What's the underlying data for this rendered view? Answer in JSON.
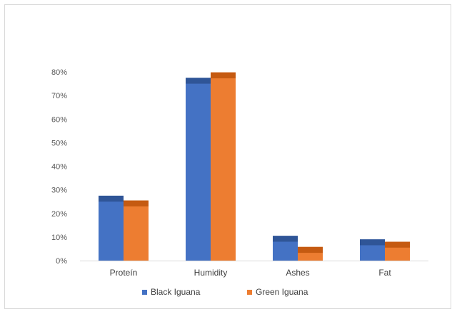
{
  "chart_data": {
    "type": "bar",
    "categories": [
      "Proteín",
      "Humidity",
      "Ashes",
      "Fat"
    ],
    "series": [
      {
        "name": "Black Iguana",
        "values": [
          27.5,
          77.5,
          10.5,
          9.0
        ],
        "error": [
          2.5,
          2.5,
          2.5,
          2.5
        ],
        "color": "#4472c4",
        "cap_color": "#2f5597"
      },
      {
        "name": "Green Iguana",
        "values": [
          25.5,
          79.8,
          5.8,
          8.0
        ],
        "error": [
          2.5,
          2.5,
          2.5,
          2.5
        ],
        "color": "#ed7d31",
        "cap_color": "#c55a11"
      }
    ],
    "y_ticks": [
      "0%",
      "10%",
      "20%",
      "30%",
      "40%",
      "50%",
      "60%",
      "70%",
      "80%"
    ],
    "ylim": [
      0,
      80
    ],
    "grid": false,
    "legend_position": "bottom"
  }
}
